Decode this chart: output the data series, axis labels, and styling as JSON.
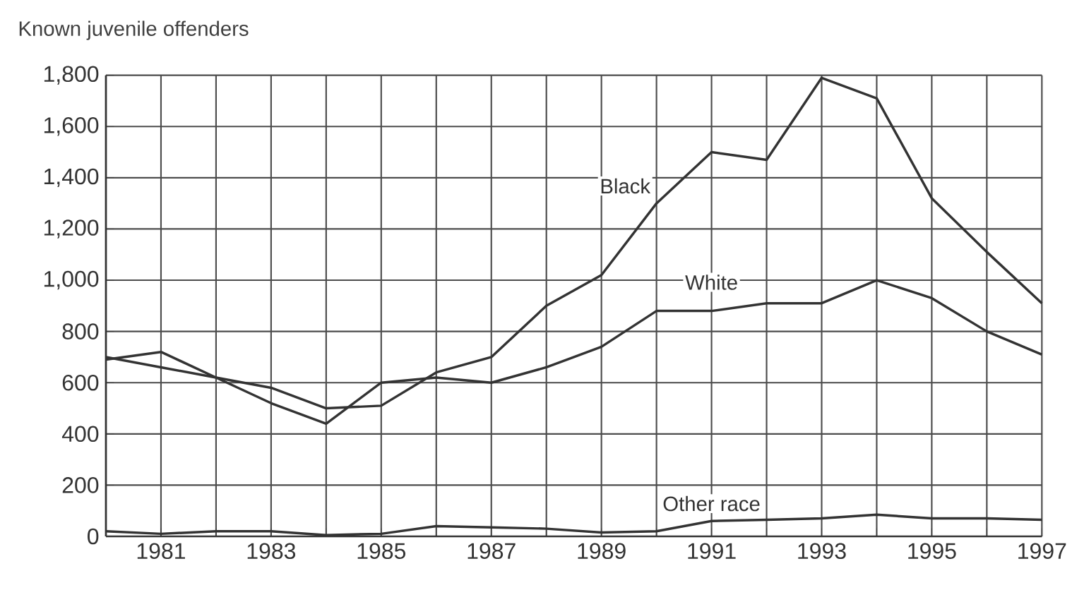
{
  "chart_data": {
    "type": "line",
    "ylabel": "Known juvenile offenders",
    "x": [
      1980,
      1981,
      1982,
      1983,
      1984,
      1985,
      1986,
      1987,
      1988,
      1989,
      1990,
      1991,
      1992,
      1993,
      1994,
      1995,
      1996,
      1997
    ],
    "series": [
      {
        "name": "Black",
        "color": "#333333",
        "values": [
          690,
          720,
          620,
          580,
          500,
          510,
          640,
          700,
          900,
          1020,
          1300,
          1500,
          1470,
          1790,
          1710,
          1320,
          1110,
          910
        ]
      },
      {
        "name": "White",
        "color": "#333333",
        "values": [
          700,
          660,
          620,
          520,
          440,
          600,
          620,
          600,
          660,
          740,
          880,
          880,
          910,
          910,
          1000,
          930,
          800,
          710
        ]
      },
      {
        "name": "Other race",
        "color": "#333333",
        "values": [
          20,
          10,
          20,
          20,
          5,
          10,
          40,
          35,
          30,
          15,
          20,
          60,
          65,
          70,
          85,
          70,
          70,
          65
        ]
      }
    ],
    "xlim": [
      1980,
      1997
    ],
    "ylim": [
      0,
      1800
    ],
    "xticks": [
      {
        "value": 1980,
        "label": null
      },
      1981,
      {
        "value": 1982,
        "label": null
      },
      1983,
      {
        "value": 1984,
        "label": null
      },
      1985,
      {
        "value": 1986,
        "label": null
      },
      1987,
      {
        "value": 1988,
        "label": null
      },
      1989,
      {
        "value": 1990,
        "label": null
      },
      1991,
      {
        "value": 1992,
        "label": null
      },
      1993,
      {
        "value": 1994,
        "label": null
      },
      1995,
      {
        "value": 1996,
        "label": null
      },
      1997
    ],
    "yticks": [
      0,
      200,
      400,
      600,
      800,
      {
        "value": 1000,
        "label": "1,000"
      },
      {
        "value": 1200,
        "label": "1,200"
      },
      {
        "value": 1400,
        "label": "1,400"
      },
      {
        "value": 1600,
        "label": "1,600"
      },
      {
        "value": 1800,
        "label": "1,800"
      }
    ],
    "grid": true,
    "marker": "none",
    "line_style": "solid"
  }
}
